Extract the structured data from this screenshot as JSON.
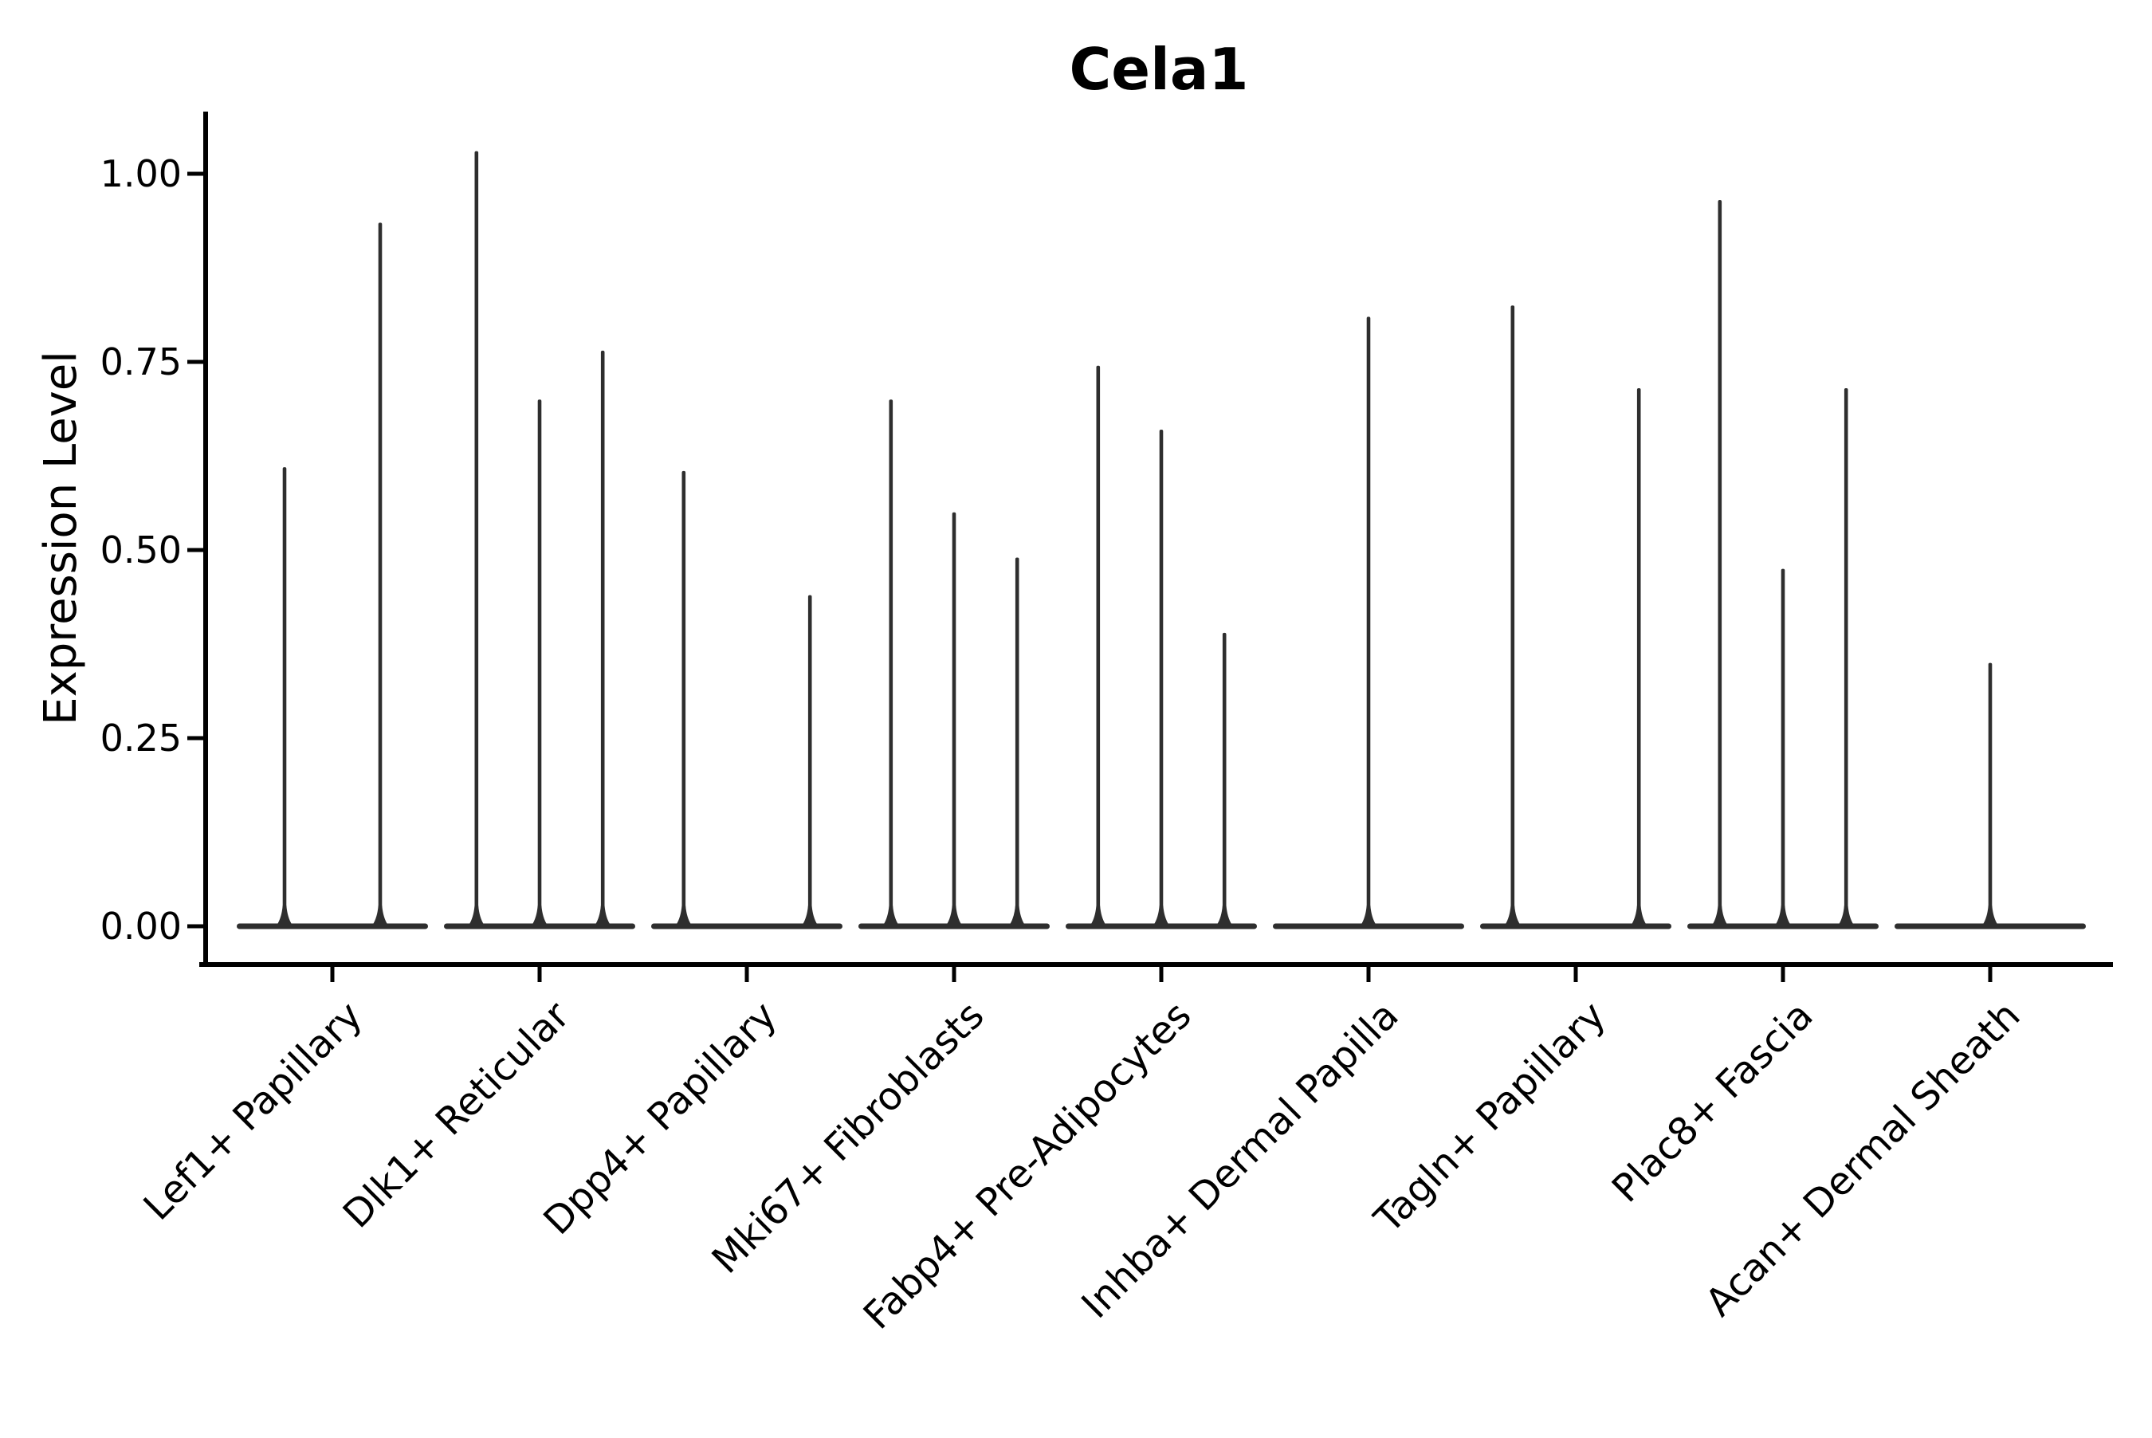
{
  "chart_data": {
    "type": "violin",
    "title": "Cela1",
    "xlabel": "",
    "ylabel": "Expression Level",
    "ylim": [
      0,
      1.08
    ],
    "grid": false,
    "legend": false,
    "yticks": [
      {
        "value": 1.0,
        "label": "1.00"
      },
      {
        "value": 0.75,
        "label": "0.75"
      },
      {
        "value": 0.5,
        "label": "0.50"
      },
      {
        "value": 0.25,
        "label": "0.25"
      },
      {
        "value": 0.0,
        "label": "0.00"
      }
    ],
    "categories": [
      {
        "label": "Lef1+ Papillary",
        "spikes": [
          {
            "pos": -0.5,
            "value": 0.61
          },
          {
            "pos": 0.5,
            "value": 0.935
          }
        ]
      },
      {
        "label": "Dlk1+ Reticular",
        "spikes": [
          {
            "pos": -0.66,
            "value": 1.03
          },
          {
            "pos": 0.0,
            "value": 0.7
          },
          {
            "pos": 0.66,
            "value": 0.765
          }
        ]
      },
      {
        "label": "Dpp4+ Papillary",
        "spikes": [
          {
            "pos": -0.66,
            "value": 0.605
          },
          {
            "pos": 0.66,
            "value": 0.44
          }
        ]
      },
      {
        "label": "Mki67+ Fibroblasts",
        "spikes": [
          {
            "pos": -0.66,
            "value": 0.7
          },
          {
            "pos": 0.0,
            "value": 0.55
          },
          {
            "pos": 0.66,
            "value": 0.49
          }
        ]
      },
      {
        "label": "Fabp4+ Pre-Adipocytes",
        "spikes": [
          {
            "pos": -0.66,
            "value": 0.745
          },
          {
            "pos": 0.0,
            "value": 0.66
          },
          {
            "pos": 0.66,
            "value": 0.39
          }
        ]
      },
      {
        "label": "Inhba+ Dermal Papilla",
        "spikes": [
          {
            "pos": 0.0,
            "value": 0.81
          }
        ]
      },
      {
        "label": "Tagln+ Papillary",
        "spikes": [
          {
            "pos": -0.66,
            "value": 0.825
          },
          {
            "pos": 0.66,
            "value": 0.715
          }
        ]
      },
      {
        "label": "Plac8+ Fascia",
        "spikes": [
          {
            "pos": -0.66,
            "value": 0.965
          },
          {
            "pos": 0.0,
            "value": 0.475
          },
          {
            "pos": 0.66,
            "value": 0.715
          }
        ]
      },
      {
        "label": "Acan+ Dermal Sheath",
        "spikes": [
          {
            "pos": 0.0,
            "value": 0.35
          }
        ]
      }
    ],
    "colors": {
      "violin": "#2e2e2e",
      "axis": "#000000",
      "text": "#000000"
    }
  }
}
